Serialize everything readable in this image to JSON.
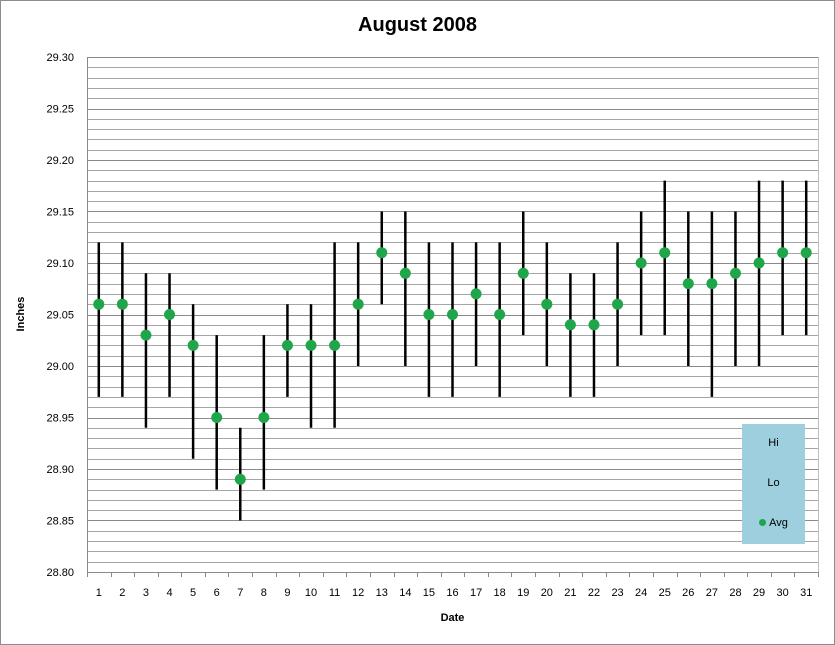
{
  "chart_data": {
    "type": "scatter",
    "title": "August 2008",
    "xlabel": "Date",
    "ylabel": "Inches",
    "ylim": [
      28.8,
      29.3
    ],
    "y_ticks": [
      "29.30",
      "29.25",
      "29.20",
      "29.15",
      "29.10",
      "29.05",
      "29.00",
      "28.95",
      "28.90",
      "28.85",
      "28.80"
    ],
    "grid": "horizontal",
    "legend_position": "bottom-right",
    "colors": {
      "avg": "#1fa64a",
      "range": "#000000",
      "legend_bg": "#9dcfdf",
      "grid": "#a6a6a6"
    },
    "x": [
      "1",
      "2",
      "3",
      "4",
      "5",
      "6",
      "7",
      "8",
      "9",
      "10",
      "11",
      "12",
      "13",
      "14",
      "15",
      "16",
      "17",
      "18",
      "19",
      "20",
      "21",
      "22",
      "23",
      "24",
      "25",
      "26",
      "27",
      "28",
      "29",
      "30",
      "31"
    ],
    "series": [
      {
        "name": "Hi",
        "values": [
          29.12,
          29.12,
          29.09,
          29.09,
          29.06,
          29.03,
          28.94,
          29.03,
          29.06,
          29.06,
          29.12,
          29.12,
          29.15,
          29.15,
          29.12,
          29.12,
          29.12,
          29.12,
          29.15,
          29.12,
          29.09,
          29.09,
          29.12,
          29.15,
          29.18,
          29.15,
          29.15,
          29.15,
          29.18,
          29.18,
          29.18
        ]
      },
      {
        "name": "Lo",
        "values": [
          28.97,
          28.97,
          28.94,
          28.97,
          28.91,
          28.88,
          28.85,
          28.88,
          28.97,
          28.94,
          28.94,
          29.0,
          29.06,
          29.0,
          28.97,
          28.97,
          29.0,
          28.97,
          29.03,
          29.0,
          28.97,
          28.97,
          29.0,
          29.03,
          29.03,
          29.0,
          28.97,
          29.0,
          29.0,
          29.03,
          29.03
        ]
      },
      {
        "name": "Avg",
        "values": [
          29.06,
          29.06,
          29.03,
          29.05,
          29.02,
          28.95,
          28.89,
          28.95,
          29.02,
          29.02,
          29.02,
          29.06,
          29.11,
          29.09,
          29.05,
          29.05,
          29.07,
          29.05,
          29.09,
          29.06,
          29.04,
          29.04,
          29.06,
          29.1,
          29.11,
          29.08,
          29.08,
          29.09,
          29.1,
          29.11,
          29.11
        ]
      }
    ]
  }
}
